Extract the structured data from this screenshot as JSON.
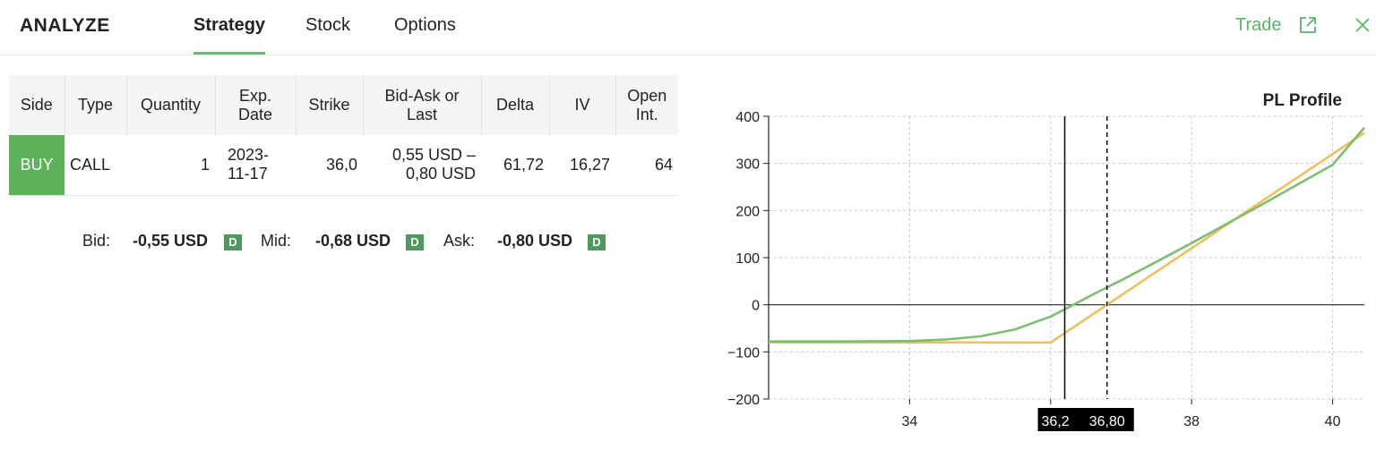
{
  "header": {
    "brand": "ANALYZE",
    "tabs": [
      {
        "label": "Strategy",
        "active": true
      },
      {
        "label": "Stock",
        "active": false
      },
      {
        "label": "Options",
        "active": false
      }
    ],
    "trade_label": "Trade",
    "icons": {
      "external": "external-link-icon",
      "close": "close-icon"
    }
  },
  "table": {
    "headers": {
      "side": "Side",
      "type": "Type",
      "quantity": "Quantity",
      "exp_1": "Exp.",
      "exp_2": "Date",
      "strike": "Strike",
      "bidask_1": "Bid-Ask or",
      "bidask_2": "Last",
      "delta": "Delta",
      "iv": "IV",
      "oi_1": "Open",
      "oi_2": "Int."
    },
    "rows": [
      {
        "side": "BUY",
        "type": "CALL",
        "quantity": "1",
        "exp_1": "2023-",
        "exp_2": "11-17",
        "strike": "36,0",
        "bidask_1": "0,55 USD –",
        "bidask_2": "0,80 USD",
        "delta": "61,72",
        "iv": "16,27",
        "oi": "64"
      }
    ]
  },
  "prices": {
    "bid_label": "Bid:",
    "bid_value": "-0,55 USD",
    "mid_label": "Mid:",
    "mid_value": "-0,68 USD",
    "ask_label": "Ask:",
    "ask_value": "-0,80 USD",
    "badge": "D"
  },
  "colors": {
    "accent": "#5cb36a",
    "buy": "#5cb35c",
    "badge": "#4e9a5c",
    "pl_today": "#7cbf72",
    "pl_expiry": "#f0bf5a"
  },
  "chart_data": {
    "type": "line",
    "title": "PL Profile",
    "xlim": [
      32,
      40.45
    ],
    "ylim": [
      -200,
      400
    ],
    "x_ticks": [
      34,
      36,
      38,
      40
    ],
    "y_ticks": [
      -200,
      -100,
      0,
      100,
      200,
      300,
      400
    ],
    "x_tick_labels": [
      "34",
      "36",
      "38",
      "40"
    ],
    "y_tick_labels": [
      "−200",
      "−100",
      "0",
      "100",
      "200",
      "300",
      "400"
    ],
    "grid": true,
    "series": [
      {
        "color": "#7cbf72",
        "x": [
          32,
          33,
          34,
          34.5,
          35,
          35.5,
          36,
          36.3,
          36.6,
          37,
          37.5,
          38,
          38.5,
          39,
          39.5,
          40,
          40.45
        ],
        "y": [
          -78,
          -78,
          -77,
          -74,
          -67,
          -52,
          -25,
          -2,
          22,
          52,
          91,
          131,
          172,
          213,
          255,
          297,
          376
        ]
      },
      {
        "color": "#f0bf5a",
        "x": [
          32,
          36,
          40.45
        ],
        "y": [
          -80,
          -80,
          365
        ]
      }
    ],
    "markers": [
      {
        "x": 36.2,
        "style": "solid",
        "label": "36,2"
      },
      {
        "x": 36.8,
        "style": "dashed",
        "label": "36,80"
      }
    ]
  }
}
